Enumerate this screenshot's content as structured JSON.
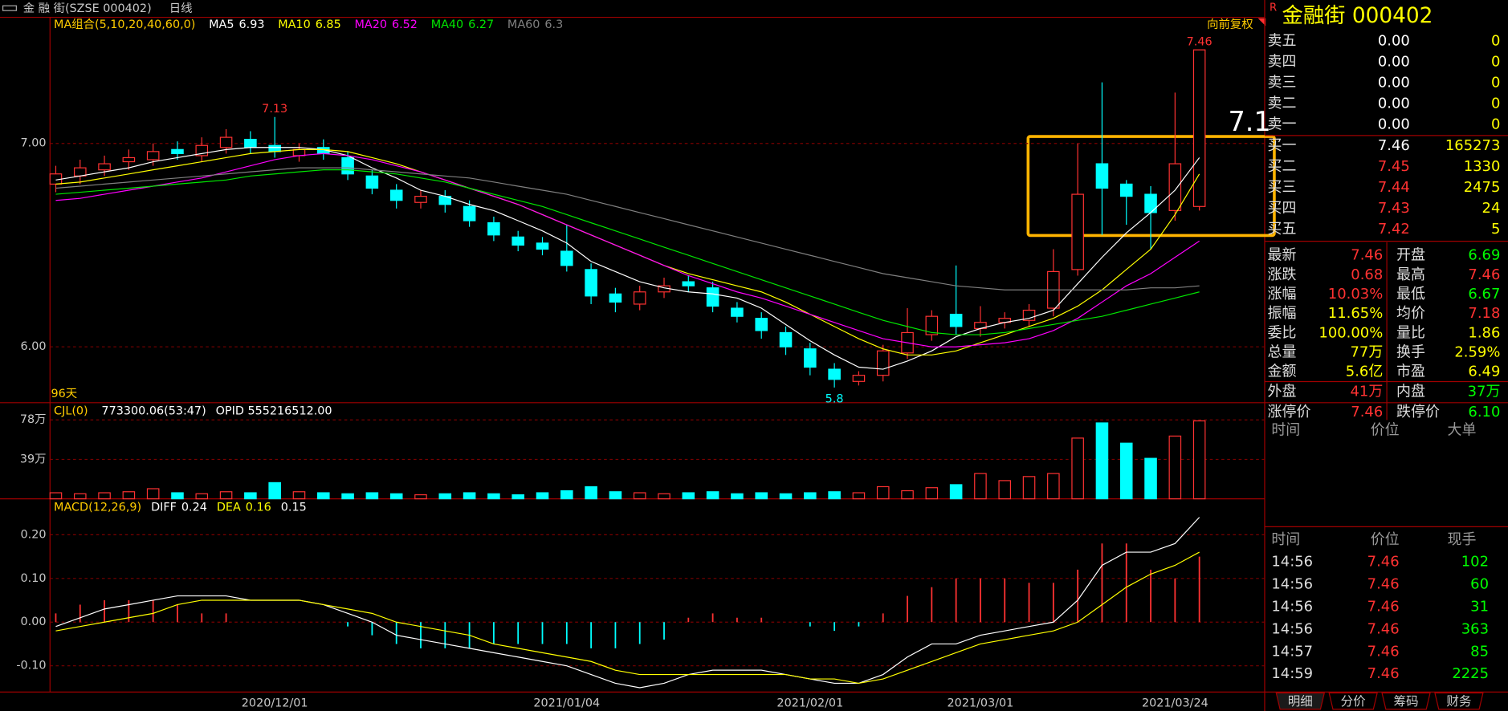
{
  "header": {
    "stock": "金 融 街(SZSE 000402)",
    "period": "日线",
    "adjust": "向前复权",
    "days": "96天",
    "badge": "R",
    "panel_title": "金融街 000402"
  },
  "annotations": [
    "7.1"
  ],
  "chart_data": [
    {
      "type": "candlestick",
      "legend_title": "MA组合(5,10,20,40,60,0)",
      "up_color": "#ff3232",
      "down_color": "#00ffff",
      "ylim": [
        5.73,
        7.62
      ],
      "yticks": [
        {
          "value": 6,
          "label": "6.00"
        },
        {
          "value": 7,
          "label": "7.00"
        }
      ],
      "categories": [
        null,
        null,
        null,
        null,
        null,
        null,
        null,
        null,
        null,
        "2020/12/01",
        null,
        null,
        null,
        null,
        null,
        null,
        null,
        null,
        null,
        null,
        null,
        "2021/01/04",
        null,
        null,
        null,
        null,
        null,
        null,
        null,
        null,
        null,
        "2021/02/01",
        null,
        null,
        null,
        null,
        null,
        null,
        "2021/03/01",
        null,
        null,
        null,
        null,
        null,
        null,
        null,
        "2021/03/24",
        null
      ],
      "open": [
        6.8,
        6.84,
        6.87,
        6.91,
        6.92,
        6.97,
        6.94,
        6.98,
        7.02,
        6.99,
        6.94,
        6.98,
        6.93,
        6.84,
        6.77,
        6.71,
        6.74,
        6.69,
        6.61,
        6.54,
        6.51,
        6.47,
        6.38,
        6.26,
        6.21,
        6.27,
        6.32,
        6.29,
        6.19,
        6.14,
        6.07,
        5.99,
        5.89,
        5.83,
        5.86,
        5.97,
        6.06,
        6.16,
        6.09,
        6.12,
        6.13,
        6.19,
        6.38,
        6.9,
        6.8,
        6.75,
        6.67,
        6.69
      ],
      "high": [
        6.89,
        6.92,
        6.94,
        6.97,
        7.0,
        7.01,
        7.03,
        7.07,
        7.06,
        7.13,
        7.0,
        7.02,
        6.96,
        6.87,
        6.8,
        6.77,
        6.77,
        6.72,
        6.64,
        6.57,
        6.54,
        6.6,
        6.41,
        6.29,
        6.3,
        6.34,
        6.35,
        6.32,
        6.22,
        6.17,
        6.1,
        6.02,
        5.92,
        5.88,
        6.01,
        6.19,
        6.18,
        6.4,
        6.2,
        6.17,
        6.21,
        6.48,
        7.0,
        7.3,
        6.82,
        6.79,
        7.25,
        7.46
      ],
      "low": [
        6.76,
        6.8,
        6.84,
        6.87,
        6.89,
        6.92,
        6.91,
        6.95,
        6.95,
        6.93,
        6.91,
        6.92,
        6.82,
        6.75,
        6.68,
        6.68,
        6.66,
        6.59,
        6.52,
        6.47,
        6.45,
        6.37,
        6.21,
        6.17,
        6.18,
        6.24,
        6.27,
        6.17,
        6.12,
        6.04,
        5.96,
        5.86,
        5.8,
        5.81,
        5.83,
        5.94,
        6.03,
        6.06,
        6.05,
        6.09,
        6.1,
        6.15,
        6.35,
        6.55,
        6.6,
        6.48,
        6.62,
        6.67
      ],
      "close": [
        6.85,
        6.88,
        6.9,
        6.93,
        6.96,
        6.95,
        6.99,
        7.03,
        6.98,
        6.96,
        6.97,
        6.95,
        6.85,
        6.78,
        6.72,
        6.74,
        6.7,
        6.62,
        6.55,
        6.5,
        6.48,
        6.4,
        6.25,
        6.22,
        6.27,
        6.3,
        6.3,
        6.2,
        6.15,
        6.08,
        6.0,
        5.9,
        5.84,
        5.86,
        5.98,
        6.07,
        6.15,
        6.1,
        6.12,
        6.14,
        6.18,
        6.37,
        6.75,
        6.78,
        6.74,
        6.66,
        6.9,
        7.46
      ],
      "series": [
        {
          "name": "MA5",
          "color": "#ffffff",
          "values": [
            6.82,
            6.84,
            6.86,
            6.88,
            6.91,
            6.93,
            6.95,
            6.97,
            6.98,
            6.98,
            6.98,
            6.97,
            6.94,
            6.88,
            6.83,
            6.77,
            6.74,
            6.7,
            6.67,
            6.62,
            6.57,
            6.51,
            6.42,
            6.37,
            6.32,
            6.29,
            6.27,
            6.26,
            6.24,
            6.19,
            6.11,
            6.03,
            5.96,
            5.9,
            5.89,
            5.93,
            5.98,
            6.05,
            6.09,
            6.12,
            6.14,
            6.18,
            6.31,
            6.44,
            6.56,
            6.66,
            6.77,
            6.93
          ]
        },
        {
          "name": "MA10",
          "color": "#ffff00",
          "values": [
            6.8,
            6.81,
            6.83,
            6.85,
            6.87,
            6.89,
            6.91,
            6.93,
            6.95,
            6.96,
            6.97,
            6.97,
            6.96,
            6.93,
            6.9,
            6.86,
            6.82,
            6.78,
            6.74,
            6.7,
            6.65,
            6.6,
            6.55,
            6.5,
            6.45,
            6.4,
            6.36,
            6.33,
            6.3,
            6.27,
            6.22,
            6.16,
            6.1,
            6.04,
            5.99,
            5.96,
            5.96,
            5.98,
            6.02,
            6.06,
            6.1,
            6.14,
            6.2,
            6.28,
            6.38,
            6.48,
            6.65,
            6.85
          ]
        },
        {
          "name": "MA20",
          "color": "#ff00ff",
          "values": [
            6.72,
            6.73,
            6.75,
            6.77,
            6.79,
            6.81,
            6.83,
            6.86,
            6.89,
            6.92,
            6.94,
            6.95,
            6.94,
            6.92,
            6.89,
            6.86,
            6.82,
            6.78,
            6.74,
            6.7,
            6.65,
            6.6,
            6.55,
            6.5,
            6.45,
            6.4,
            6.35,
            6.31,
            6.27,
            6.24,
            6.2,
            6.16,
            6.12,
            6.08,
            6.04,
            6.02,
            6.0,
            6.0,
            6.01,
            6.02,
            6.04,
            6.08,
            6.14,
            6.22,
            6.3,
            6.36,
            6.44,
            6.52
          ]
        },
        {
          "name": "MA40",
          "color": "#00e600",
          "values": [
            6.75,
            6.76,
            6.77,
            6.78,
            6.79,
            6.8,
            6.81,
            6.82,
            6.84,
            6.85,
            6.86,
            6.87,
            6.87,
            6.86,
            6.85,
            6.83,
            6.81,
            6.78,
            6.75,
            6.72,
            6.69,
            6.65,
            6.61,
            6.57,
            6.53,
            6.49,
            6.45,
            6.41,
            6.37,
            6.33,
            6.29,
            6.25,
            6.21,
            6.17,
            6.13,
            6.1,
            6.07,
            6.06,
            6.06,
            6.07,
            6.09,
            6.11,
            6.13,
            6.15,
            6.18,
            6.21,
            6.24,
            6.27
          ]
        },
        {
          "name": "MA60",
          "color": "#808080",
          "values": [
            6.78,
            6.79,
            6.8,
            6.81,
            6.82,
            6.83,
            6.84,
            6.85,
            6.86,
            6.87,
            6.88,
            6.88,
            6.88,
            6.87,
            6.86,
            6.85,
            6.84,
            6.83,
            6.81,
            6.79,
            6.77,
            6.75,
            6.72,
            6.69,
            6.66,
            6.63,
            6.6,
            6.57,
            6.54,
            6.51,
            6.48,
            6.45,
            6.42,
            6.39,
            6.36,
            6.34,
            6.32,
            6.3,
            6.29,
            6.28,
            6.28,
            6.28,
            6.28,
            6.28,
            6.28,
            6.29,
            6.29,
            6.3
          ]
        }
      ]
    },
    {
      "type": "bar",
      "legend_title": "CJL(0)",
      "legend_value": "773300.06(53:47)",
      "legend_extra": "OPID 555216512.00",
      "ylim": [
        0,
        94
      ],
      "yticks": [
        {
          "value": 78,
          "label": "78万"
        },
        {
          "value": 39,
          "label": "39万"
        }
      ],
      "values": [
        6,
        5,
        6,
        7,
        10,
        6,
        5,
        7,
        6,
        16,
        7,
        6,
        5,
        6,
        5,
        4,
        5,
        6,
        5,
        4,
        6,
        8,
        12,
        7,
        6,
        5,
        6,
        7,
        5,
        6,
        5,
        6,
        7,
        6,
        12,
        8,
        11,
        14,
        25,
        18,
        22,
        25,
        60,
        75,
        55,
        40,
        62,
        77
      ]
    },
    {
      "type": "macd",
      "legend_title": "MACD(12,26,9)",
      "ylim": [
        -0.16,
        0.28
      ],
      "yticks": [
        {
          "value": 0.2,
          "label": "0.20"
        },
        {
          "value": 0.1,
          "label": "0.10"
        },
        {
          "value": 0,
          "label": "0.00"
        },
        {
          "value": -0.1,
          "label": "-0.10"
        }
      ],
      "series": [
        {
          "name": "DIFF",
          "color": "#ffffff",
          "values": [
            -0.01,
            0.01,
            0.03,
            0.04,
            0.05,
            0.06,
            0.06,
            0.06,
            0.05,
            0.05,
            0.05,
            0.04,
            0.02,
            0.0,
            -0.03,
            -0.04,
            -0.05,
            -0.06,
            -0.07,
            -0.08,
            -0.09,
            -0.1,
            -0.12,
            -0.14,
            -0.15,
            -0.14,
            -0.12,
            -0.11,
            -0.11,
            -0.11,
            -0.12,
            -0.13,
            -0.14,
            -0.14,
            -0.12,
            -0.08,
            -0.05,
            -0.05,
            -0.03,
            -0.02,
            -0.01,
            0.0,
            0.05,
            0.13,
            0.16,
            0.16,
            0.18,
            0.24
          ]
        },
        {
          "name": "DEA",
          "color": "#ffff00",
          "values": [
            -0.02,
            -0.01,
            0.0,
            0.01,
            0.02,
            0.04,
            0.05,
            0.05,
            0.05,
            0.05,
            0.05,
            0.04,
            0.03,
            0.02,
            0.0,
            -0.01,
            -0.02,
            -0.03,
            -0.05,
            -0.06,
            -0.07,
            -0.08,
            -0.09,
            -0.11,
            -0.12,
            -0.12,
            -0.12,
            -0.12,
            -0.12,
            -0.12,
            -0.12,
            -0.13,
            -0.13,
            -0.14,
            -0.13,
            -0.11,
            -0.09,
            -0.07,
            -0.05,
            -0.04,
            -0.03,
            -0.02,
            0.0,
            0.04,
            0.08,
            0.11,
            0.13,
            0.16
          ]
        }
      ],
      "bars": [
        0.02,
        0.04,
        0.05,
        0.05,
        0.05,
        0.04,
        0.02,
        0.02,
        0.0,
        0.0,
        0.0,
        0.0,
        -0.01,
        -0.03,
        -0.05,
        -0.06,
        -0.06,
        -0.06,
        -0.05,
        -0.05,
        -0.05,
        -0.05,
        -0.06,
        -0.06,
        -0.05,
        -0.04,
        0.01,
        0.02,
        0.01,
        0.01,
        0.0,
        -0.01,
        -0.02,
        -0.01,
        0.02,
        0.06,
        0.08,
        0.1,
        0.1,
        0.1,
        0.09,
        0.09,
        0.12,
        0.18,
        0.18,
        0.12,
        0.1,
        0.15
      ]
    }
  ],
  "order_book": {
    "asks": [
      [
        "卖五",
        "0.00",
        "0"
      ],
      [
        "卖四",
        "0.00",
        "0"
      ],
      [
        "卖三",
        "0.00",
        "0"
      ],
      [
        "卖二",
        "0.00",
        "0"
      ],
      [
        "卖一",
        "0.00",
        "0"
      ]
    ],
    "bids": [
      [
        "买一",
        "7.46",
        "165273"
      ],
      [
        "买二",
        "7.45",
        "1330"
      ],
      [
        "买三",
        "7.44",
        "2475"
      ],
      [
        "买四",
        "7.43",
        "24"
      ],
      [
        "买五",
        "7.42",
        "5"
      ]
    ]
  },
  "stats": [
    [
      "最新",
      "7.46",
      "开盘",
      "6.69"
    ],
    [
      "涨跌",
      "0.68",
      "最高",
      "7.46"
    ],
    [
      "涨幅",
      "10.03%",
      "最低",
      "6.67"
    ],
    [
      "振幅",
      "11.65%",
      "均价",
      "7.18"
    ],
    [
      "委比",
      "100.00%",
      "量比",
      "1.86"
    ],
    [
      "总量",
      "77万",
      "换手",
      "2.59%"
    ],
    [
      "金额",
      "5.6亿",
      "市盈",
      "6.49"
    ],
    [
      "外盘",
      "41万",
      "内盘",
      "37万"
    ],
    [
      "涨停价",
      "7.46",
      "跌停价",
      "6.10"
    ]
  ],
  "big_orders": {
    "header": [
      "时间",
      "价位",
      "大单"
    ]
  },
  "trades": {
    "header": [
      "时间",
      "价位",
      "现手"
    ],
    "rows": [
      [
        "14:56",
        "7.46",
        "102"
      ],
      [
        "14:56",
        "7.46",
        "60"
      ],
      [
        "14:56",
        "7.46",
        "31"
      ],
      [
        "14:56",
        "7.46",
        "363"
      ],
      [
        "14:57",
        "7.46",
        "85"
      ],
      [
        "14:59",
        "7.46",
        "2225"
      ]
    ]
  },
  "tabs": [
    "明细",
    "分价",
    "筹码",
    "财务"
  ]
}
